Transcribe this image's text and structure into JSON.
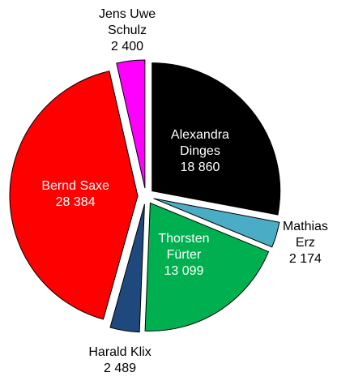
{
  "chart_data": {
    "type": "pie",
    "categories": [
      "Alexandra Dinges",
      "Mathias Erz",
      "Thorsten Fürter",
      "Harald Klix",
      "Bernd Saxe",
      "Jens Uwe Schulz"
    ],
    "values": [
      18860,
      2174,
      13099,
      2489,
      28384,
      2400
    ],
    "value_labels": [
      "18 860",
      "2 174",
      "13 099",
      "2 489",
      "28 384",
      "2 400"
    ],
    "colors": [
      "#000000",
      "#4bacc6",
      "#00b050",
      "#1f497d",
      "#ff0000",
      "#ff00ff"
    ]
  }
}
